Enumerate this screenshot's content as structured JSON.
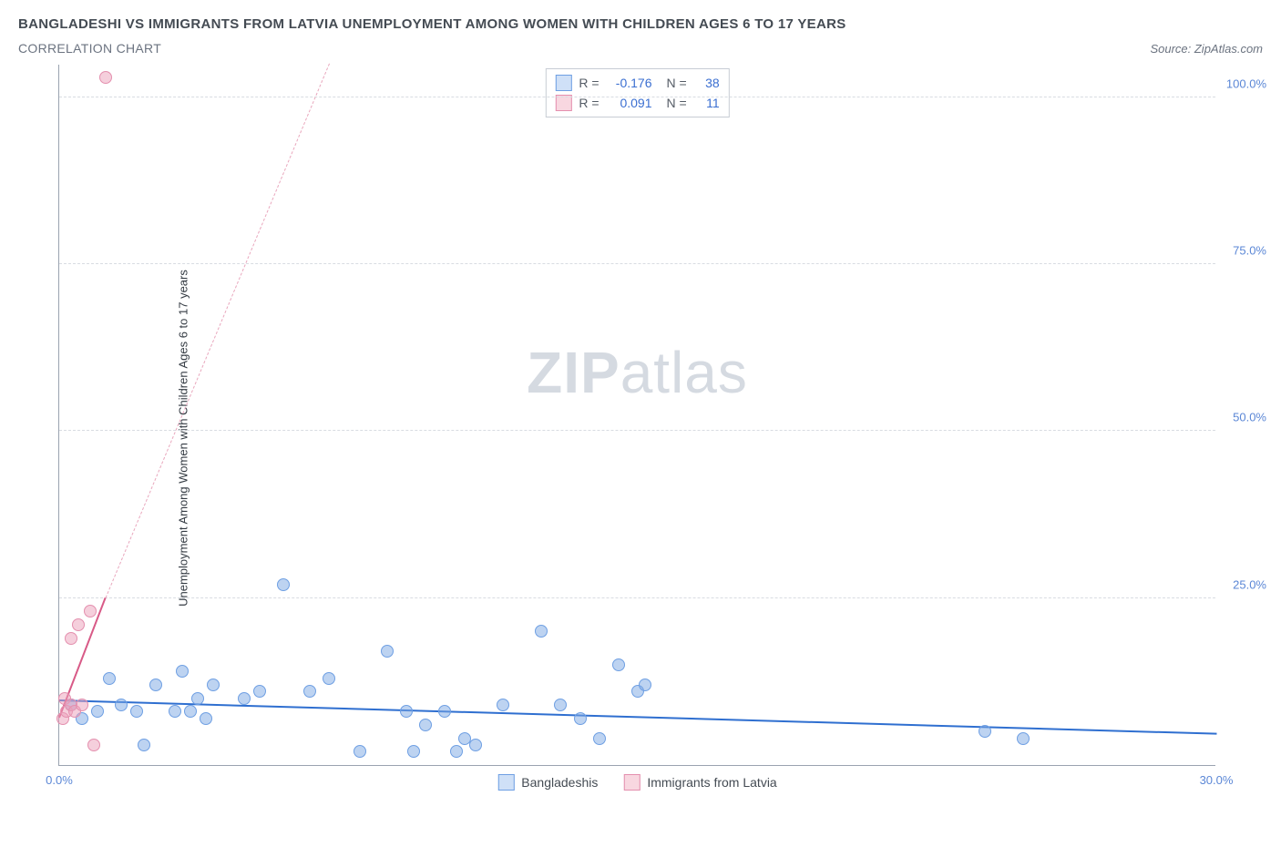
{
  "header": {
    "title": "BANGLADESHI VS IMMIGRANTS FROM LATVIA UNEMPLOYMENT AMONG WOMEN WITH CHILDREN AGES 6 TO 17 YEARS",
    "subtitle": "CORRELATION CHART",
    "source": "Source: ZipAtlas.com"
  },
  "chart": {
    "type": "scatter",
    "ylabel": "Unemployment Among Women with Children Ages 6 to 17 years",
    "xlim": [
      0,
      30
    ],
    "ylim": [
      0,
      105
    ],
    "xticks": [
      {
        "v": 0,
        "label": "0.0%"
      },
      {
        "v": 30,
        "label": "30.0%"
      }
    ],
    "yticks": [
      {
        "v": 25,
        "label": "25.0%"
      },
      {
        "v": 50,
        "label": "50.0%"
      },
      {
        "v": 75,
        "label": "75.0%"
      },
      {
        "v": 100,
        "label": "100.0%"
      }
    ],
    "watermark": {
      "zip": "ZIP",
      "atlas": "atlas"
    },
    "info_box": [
      {
        "swatch_fill": "#cfe0f7",
        "swatch_border": "#6e9fe3",
        "r_label": "R =",
        "r_val": "-0.176",
        "n_label": "N =",
        "n_val": "38"
      },
      {
        "swatch_fill": "#f8d7e0",
        "swatch_border": "#e48fae",
        "r_label": "R =",
        "r_val": "0.091",
        "n_label": "N =",
        "n_val": "11"
      }
    ],
    "legend": [
      {
        "swatch_fill": "#cfe0f7",
        "swatch_border": "#6e9fe3",
        "label": "Bangladeshis"
      },
      {
        "swatch_fill": "#f8d7e0",
        "swatch_border": "#e48fae",
        "label": "Immigrants from Latvia"
      }
    ],
    "series": [
      {
        "name": "Bangladeshis",
        "color_fill": "rgba(123,168,228,0.5)",
        "color_border": "#6e9fe3",
        "marker_size": 14,
        "trend": {
          "style": "solid",
          "color": "#2f6fd0",
          "x1": 0,
          "y1": 9.5,
          "x2": 30,
          "y2": 4.5
        },
        "points": [
          {
            "x": 0.3,
            "y": 9
          },
          {
            "x": 0.6,
            "y": 7
          },
          {
            "x": 1.0,
            "y": 8
          },
          {
            "x": 1.3,
            "y": 13
          },
          {
            "x": 1.6,
            "y": 9
          },
          {
            "x": 2.0,
            "y": 8
          },
          {
            "x": 2.2,
            "y": 3
          },
          {
            "x": 2.5,
            "y": 12
          },
          {
            "x": 3.0,
            "y": 8
          },
          {
            "x": 3.2,
            "y": 14
          },
          {
            "x": 3.4,
            "y": 8
          },
          {
            "x": 3.6,
            "y": 10
          },
          {
            "x": 3.8,
            "y": 7
          },
          {
            "x": 4.0,
            "y": 12
          },
          {
            "x": 4.8,
            "y": 10
          },
          {
            "x": 5.2,
            "y": 11
          },
          {
            "x": 5.8,
            "y": 27
          },
          {
            "x": 6.5,
            "y": 11
          },
          {
            "x": 7.0,
            "y": 13
          },
          {
            "x": 7.8,
            "y": 2
          },
          {
            "x": 8.5,
            "y": 17
          },
          {
            "x": 9.0,
            "y": 8
          },
          {
            "x": 9.2,
            "y": 2
          },
          {
            "x": 9.5,
            "y": 6
          },
          {
            "x": 10.0,
            "y": 8
          },
          {
            "x": 10.3,
            "y": 2
          },
          {
            "x": 10.5,
            "y": 4
          },
          {
            "x": 10.8,
            "y": 3
          },
          {
            "x": 11.5,
            "y": 9
          },
          {
            "x": 12.5,
            "y": 20
          },
          {
            "x": 13.0,
            "y": 9
          },
          {
            "x": 13.5,
            "y": 7
          },
          {
            "x": 14.0,
            "y": 4
          },
          {
            "x": 14.5,
            "y": 15
          },
          {
            "x": 15.0,
            "y": 11
          },
          {
            "x": 15.2,
            "y": 12
          },
          {
            "x": 24.0,
            "y": 5
          },
          {
            "x": 25.0,
            "y": 4
          }
        ]
      },
      {
        "name": "Immigrants from Latvia",
        "color_fill": "rgba(235,160,186,0.5)",
        "color_border": "#e48fae",
        "marker_size": 14,
        "trend_solid": {
          "style": "solid",
          "color": "#d85a87",
          "x1": 0,
          "y1": 7,
          "x2": 1.2,
          "y2": 25
        },
        "trend_dashed": {
          "style": "dashed",
          "color": "#e9a7bd",
          "x1": 1.2,
          "y1": 25,
          "x2": 7.0,
          "y2": 105
        },
        "points": [
          {
            "x": 0.1,
            "y": 7
          },
          {
            "x": 0.15,
            "y": 10
          },
          {
            "x": 0.2,
            "y": 8
          },
          {
            "x": 0.3,
            "y": 9
          },
          {
            "x": 0.3,
            "y": 19
          },
          {
            "x": 0.4,
            "y": 8
          },
          {
            "x": 0.5,
            "y": 21
          },
          {
            "x": 0.6,
            "y": 9
          },
          {
            "x": 0.8,
            "y": 23
          },
          {
            "x": 0.9,
            "y": 3
          },
          {
            "x": 1.2,
            "y": 103
          }
        ]
      }
    ]
  }
}
